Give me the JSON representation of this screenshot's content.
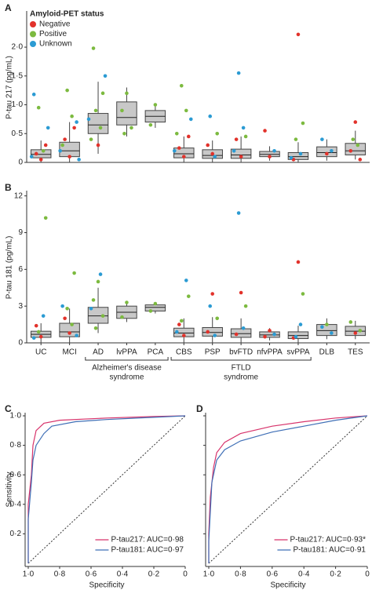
{
  "chart_data": [
    {
      "type": "box",
      "label": "A",
      "y_label": "P-tau 217 (pg/mL)",
      "legend_title": "Amyloid-PET status",
      "ylim": [
        0,
        2.6
      ],
      "yticks": [
        0,
        {
          "value": 0.5,
          "label": "0·5"
        },
        {
          "value": 1,
          "label": "1·0"
        },
        {
          "value": 1.5,
          "label": "1·5"
        },
        {
          "value": 2,
          "label": "2·0"
        }
      ],
      "box_color": "#c8c8c8",
      "boxes": [
        {
          "low": 0,
          "q1": 0.08,
          "median": 0.14,
          "q3": 0.22,
          "high": 0.38
        },
        {
          "low": 0,
          "q1": 0.1,
          "median": 0.2,
          "q3": 0.35,
          "high": 0.7
        },
        {
          "low": 0.15,
          "q1": 0.5,
          "median": 0.65,
          "q3": 0.85,
          "high": 1.4
        },
        {
          "low": 0.45,
          "q1": 0.65,
          "median": 0.78,
          "q3": 1.05,
          "high": 1.3
        },
        {
          "low": 0.6,
          "q1": 0.7,
          "median": 0.8,
          "q3": 0.9,
          "high": 1.0
        },
        {
          "low": 0,
          "q1": 0.08,
          "median": 0.15,
          "q3": 0.25,
          "high": 0.45
        },
        {
          "low": 0,
          "q1": 0.07,
          "median": 0.12,
          "q3": 0.22,
          "high": 0.38
        },
        {
          "low": 0,
          "q1": 0.07,
          "median": 0.13,
          "q3": 0.23,
          "high": 0.45
        },
        {
          "low": 0.03,
          "q1": 0.1,
          "median": 0.14,
          "q3": 0.19,
          "high": 0.28
        },
        {
          "low": 0,
          "q1": 0.05,
          "median": 0.1,
          "q3": 0.17,
          "high": 0.35
        },
        {
          "low": 0.03,
          "q1": 0.1,
          "median": 0.17,
          "q3": 0.27,
          "high": 0.4
        },
        {
          "low": 0.05,
          "q1": 0.13,
          "median": 0.2,
          "q3": 0.33,
          "high": 0.55
        }
      ],
      "series": [
        {
          "name": "Negative",
          "color": "#e2322b",
          "x": [
            0,
            0,
            0,
            1,
            1,
            1,
            2,
            5,
            5,
            5,
            6,
            6,
            7,
            7,
            8,
            8,
            9,
            9,
            10,
            11,
            11,
            11
          ],
          "values": [
            0.05,
            0.15,
            0.3,
            0.1,
            0.4,
            0.6,
            0.3,
            0.1,
            0.25,
            0.45,
            0.15,
            0.3,
            0.1,
            0.4,
            0.1,
            0.55,
            2.22,
            0.05,
            0.15,
            0.7,
            0.2,
            0.05
          ]
        },
        {
          "name": "Positive",
          "color": "#7cba3f",
          "x": [
            0,
            0,
            1,
            1,
            1,
            2,
            2,
            2,
            2,
            2,
            3,
            3,
            3,
            3,
            4,
            4,
            5,
            5,
            5,
            6,
            7,
            9,
            9,
            11,
            11
          ],
          "values": [
            0.95,
            0.2,
            1.25,
            0.8,
            0.3,
            1.98,
            1.2,
            0.9,
            0.6,
            0.4,
            1.2,
            0.9,
            0.6,
            0.5,
            1.0,
            0.65,
            1.33,
            0.9,
            0.5,
            0.5,
            0.45,
            0.68,
            0.4,
            0.4,
            0.3
          ]
        },
        {
          "name": "Unknown",
          "color": "#2b9bd3",
          "x": [
            0,
            0,
            0,
            1,
            1,
            1,
            2,
            2,
            5,
            5,
            6,
            6,
            7,
            7,
            7,
            8,
            9,
            9,
            10,
            10
          ],
          "values": [
            1.18,
            0.6,
            0.1,
            0.7,
            0.2,
            0.05,
            1.5,
            0.75,
            0.75,
            0.2,
            0.8,
            0.1,
            1.55,
            0.6,
            0.2,
            0.2,
            0.15,
            0.08,
            0.4,
            0.2
          ]
        }
      ]
    },
    {
      "type": "box",
      "label": "B",
      "y_label": "P-tau 181 (pg/mL)",
      "categories": [
        "UC",
        "MCI",
        "AD",
        "lvPPA",
        "PCA",
        "CBS",
        "PSP",
        "bvFTD",
        "nfvPPA",
        "svPPA",
        "DLB",
        "TES"
      ],
      "group_labels": [
        [
          "Alzheimer's disease",
          "syndrome"
        ],
        [
          "FTLD",
          "syndrome"
        ]
      ],
      "ylim": [
        0,
        12.3
      ],
      "yticks": [
        0,
        3,
        6,
        9,
        12
      ],
      "box_color": "#c8c8c8",
      "boxes": [
        {
          "low": 0,
          "q1": 0.45,
          "median": 0.7,
          "q3": 0.95,
          "high": 1.6
        },
        {
          "low": 0,
          "q1": 0.5,
          "median": 0.9,
          "q3": 1.6,
          "high": 2.8
        },
        {
          "low": 0.8,
          "q1": 1.6,
          "median": 2.2,
          "q3": 2.9,
          "high": 4.5
        },
        {
          "low": 1.7,
          "q1": 2.0,
          "median": 2.5,
          "q3": 3.0,
          "high": 3.3
        },
        {
          "low": 2.4,
          "q1": 2.6,
          "median": 2.9,
          "q3": 3.1,
          "high": 3.3
        },
        {
          "low": 0,
          "q1": 0.5,
          "median": 0.8,
          "q3": 1.2,
          "high": 2.0
        },
        {
          "low": 0,
          "q1": 0.55,
          "median": 0.85,
          "q3": 1.25,
          "high": 2.1
        },
        {
          "low": 0,
          "q1": 0.45,
          "median": 0.75,
          "q3": 1.15,
          "high": 2.0
        },
        {
          "low": 0.2,
          "q1": 0.45,
          "median": 0.65,
          "q3": 0.9,
          "high": 1.2
        },
        {
          "low": 0,
          "q1": 0.35,
          "median": 0.6,
          "q3": 0.9,
          "high": 1.4
        },
        {
          "low": 0.3,
          "q1": 0.6,
          "median": 1.0,
          "q3": 1.5,
          "high": 2.0
        },
        {
          "low": 0.3,
          "q1": 0.6,
          "median": 0.95,
          "q3": 1.35,
          "high": 1.8
        }
      ],
      "series": [
        {
          "color": "#e2322b",
          "x": [
            0,
            0,
            1,
            1,
            5,
            5,
            6,
            6,
            7,
            7,
            8,
            8,
            9,
            9,
            11
          ],
          "values": [
            0.5,
            1.4,
            0.8,
            2.0,
            0.6,
            1.5,
            4.0,
            0.9,
            4.1,
            0.7,
            1.0,
            0.5,
            6.6,
            0.4,
            0.8
          ]
        },
        {
          "color": "#7cba3f",
          "x": [
            0,
            0,
            1,
            1,
            1,
            2,
            2,
            2,
            2,
            3,
            3,
            4,
            4,
            5,
            5,
            6,
            7,
            9,
            10,
            11,
            11
          ],
          "values": [
            10.2,
            0.9,
            5.7,
            2.8,
            1.5,
            5.0,
            3.5,
            2.2,
            1.2,
            3.3,
            2.1,
            3.2,
            2.6,
            3.8,
            1.8,
            2.0,
            3.0,
            4.0,
            1.5,
            1.7,
            1.0
          ]
        },
        {
          "color": "#2b9bd3",
          "x": [
            0,
            0,
            1,
            1,
            2,
            2,
            5,
            5,
            6,
            6,
            7,
            7,
            8,
            9,
            9,
            10,
            10
          ],
          "values": [
            2.2,
            0.4,
            3.0,
            0.6,
            5.6,
            2.8,
            5.1,
            0.9,
            3.0,
            0.6,
            10.6,
            1.2,
            0.7,
            0.5,
            1.5,
            1.3,
            0.8
          ]
        }
      ]
    },
    {
      "type": "line",
      "label": "C",
      "x_label": "Specificity",
      "y_label": "Sensitivity",
      "xlim": [
        1,
        0
      ],
      "ylim": [
        0,
        1
      ],
      "xticks": [
        {
          "value": 1,
          "label": "1·0"
        },
        {
          "value": 0.8,
          "label": "0·8"
        },
        {
          "value": 0.6,
          "label": "0·6"
        },
        {
          "value": 0.4,
          "label": "0·4"
        },
        {
          "value": 0.2,
          "label": "0·2"
        },
        0
      ],
      "yticks": [
        {
          "value": 0.2,
          "label": "0·2"
        },
        {
          "value": 0.4,
          "label": "0·4"
        },
        {
          "value": 0.6,
          "label": "0·6"
        },
        {
          "value": 0.8,
          "label": "0·8"
        },
        {
          "value": 1,
          "label": "1·0"
        }
      ],
      "series": [
        {
          "name": "P-tau217: AUC=0·98",
          "color": "#d7336b",
          "x": [
            1,
            1,
            0.98,
            0.97,
            0.95,
            0.9,
            0.8,
            0.5,
            0.2,
            0
          ],
          "values": [
            0,
            0.4,
            0.6,
            0.8,
            0.9,
            0.95,
            0.97,
            0.985,
            0.995,
            1
          ]
        },
        {
          "name": "P-tau181: AUC=0·97",
          "color": "#3f6fb6",
          "x": [
            1,
            1,
            0.98,
            0.97,
            0.95,
            0.9,
            0.85,
            0.7,
            0.5,
            0.2,
            0
          ],
          "values": [
            0,
            0.3,
            0.55,
            0.7,
            0.8,
            0.88,
            0.93,
            0.96,
            0.975,
            0.99,
            1
          ]
        }
      ]
    },
    {
      "type": "line",
      "label": "D",
      "x_label": "Specificity",
      "ytick_labels": false,
      "xlim": [
        1,
        0
      ],
      "ylim": [
        0,
        1
      ],
      "xticks": [
        {
          "value": 1,
          "label": "1·0"
        },
        {
          "value": 0.8,
          "label": "0·8"
        },
        {
          "value": 0.6,
          "label": "0·6"
        },
        {
          "value": 0.4,
          "label": "0·4"
        },
        {
          "value": 0.2,
          "label": "0·2"
        },
        0
      ],
      "yticks": [
        0.2,
        0.4,
        0.6,
        0.8,
        1
      ],
      "series": [
        {
          "name": "P-tau217: AUC=0·93*",
          "color": "#d7336b",
          "x": [
            1,
            1,
            0.99,
            0.97,
            0.95,
            0.9,
            0.8,
            0.6,
            0.4,
            0.2,
            0
          ],
          "values": [
            0,
            0.2,
            0.45,
            0.65,
            0.75,
            0.82,
            0.88,
            0.93,
            0.96,
            0.985,
            1
          ]
        },
        {
          "name": "P-tau181: AUC=0·91",
          "color": "#3f6fb6",
          "x": [
            1,
            1,
            0.99,
            0.98,
            0.95,
            0.9,
            0.8,
            0.6,
            0.4,
            0.2,
            0
          ],
          "values": [
            0,
            0.15,
            0.35,
            0.55,
            0.7,
            0.77,
            0.83,
            0.89,
            0.93,
            0.97,
            1
          ]
        }
      ]
    }
  ]
}
